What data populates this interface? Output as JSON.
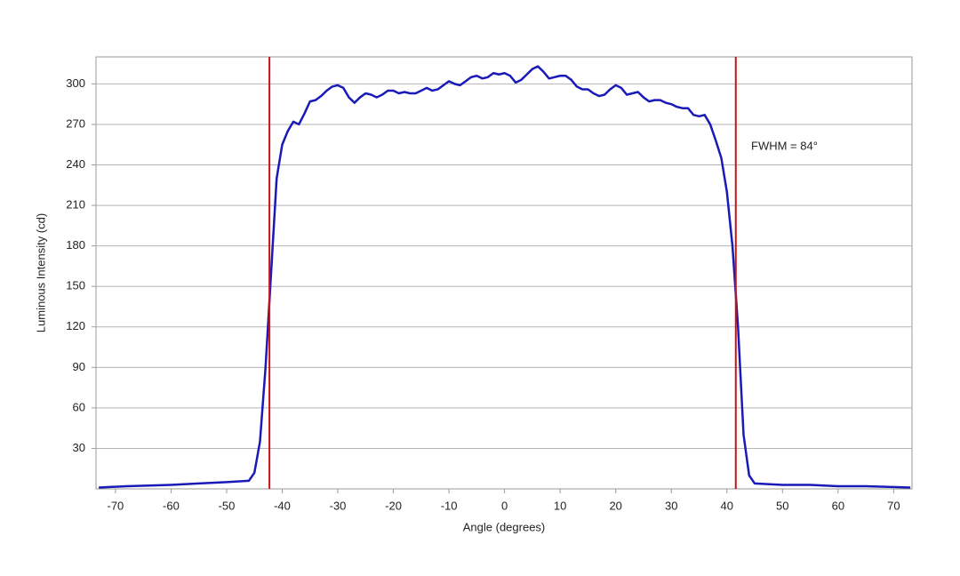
{
  "chart_data": {
    "type": "line",
    "x_label": "Angle (degrees)",
    "y_label": "Luminous Intensity (cd)",
    "annotation": "FWHM = 84°",
    "x": [
      -73,
      -68,
      -60,
      -55,
      -50,
      -46,
      -45,
      -44,
      -43,
      -42,
      -41,
      -40,
      -39,
      -38,
      -37,
      -36,
      -35,
      -34,
      -33,
      -32,
      -31,
      -30,
      -29,
      -28,
      -27,
      -26,
      -25,
      -24,
      -23,
      -22,
      -21,
      -20,
      -19,
      -18,
      -17,
      -16,
      -15,
      -14,
      -13,
      -12,
      -11,
      -10,
      -9,
      -8,
      -7,
      -6,
      -5,
      -4,
      -3,
      -2,
      -1,
      0,
      1,
      2,
      3,
      4,
      5,
      6,
      7,
      8,
      9,
      10,
      11,
      12,
      13,
      14,
      15,
      16,
      17,
      18,
      19,
      20,
      21,
      22,
      23,
      24,
      25,
      26,
      27,
      28,
      29,
      30,
      31,
      32,
      33,
      34,
      35,
      36,
      37,
      38,
      39,
      40,
      41,
      42,
      43,
      44,
      45,
      50,
      55,
      60,
      65,
      73
    ],
    "series": [
      {
        "name": "Luminous Intensity",
        "color": "#1a1ab8",
        "values": [
          1,
          2,
          3,
          4,
          5,
          6,
          12,
          35,
          90,
          160,
          230,
          255,
          265,
          272,
          270,
          278,
          287,
          288,
          291,
          295,
          298,
          299,
          297,
          290,
          286,
          290,
          293,
          292,
          290,
          292,
          295,
          295,
          293,
          294,
          293,
          293,
          295,
          297,
          295,
          296,
          299,
          302,
          300,
          299,
          302,
          305,
          306,
          304,
          305,
          308,
          307,
          308,
          306,
          301,
          303,
          307,
          311,
          313,
          309,
          304,
          305,
          306,
          306,
          303,
          298,
          296,
          296,
          293,
          291,
          292,
          296,
          299,
          297,
          292,
          293,
          294,
          290,
          287,
          288,
          288,
          286,
          285,
          283,
          282,
          282,
          277,
          276,
          277,
          270,
          258,
          245,
          220,
          180,
          120,
          40,
          10,
          4,
          3,
          3,
          2,
          2,
          1
        ]
      }
    ],
    "vlines": [
      {
        "x": -42.3,
        "color": "#cc1111"
      },
      {
        "x": 41.6,
        "color": "#cc1111"
      }
    ],
    "xlim": [
      -73.5,
      73.3
    ],
    "xticks": [
      -70,
      -60,
      -50,
      -40,
      -30,
      -20,
      -10,
      0,
      10,
      20,
      30,
      40,
      50,
      60,
      70
    ],
    "ylim": [
      0,
      320
    ],
    "yticks": [
      30,
      60,
      90,
      120,
      150,
      180,
      210,
      240,
      270,
      300
    ],
    "grid": true
  }
}
